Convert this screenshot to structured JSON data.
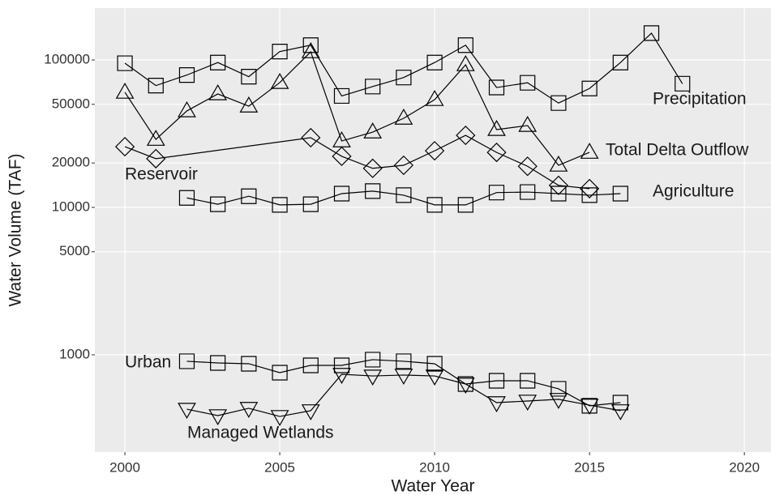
{
  "chart_data": {
    "type": "line",
    "log_y": true,
    "grid": true,
    "xlabel": "Water Year",
    "ylabel": "Water Volume (TAF)",
    "xlim": [
      1999.03,
      2020.86
    ],
    "xticks": [
      2000,
      2005,
      2010,
      2015,
      2020
    ],
    "ylim": [
      219,
      224700
    ],
    "yticks": [
      1000,
      5000,
      10000,
      20000,
      50000,
      100000
    ],
    "series": [
      {
        "name": "Precipitation",
        "marker": "square",
        "color": "#000000",
        "x": [
          2000,
          2001,
          2002,
          2003,
          2004,
          2005,
          2006,
          2007,
          2008,
          2009,
          2010,
          2011,
          2012,
          2013,
          2014,
          2015,
          2016,
          2017,
          2018
        ],
        "values": [
          95000,
          67000,
          79000,
          96000,
          77000,
          114000,
          126000,
          57000,
          66000,
          76000,
          96000,
          126000,
          65000,
          70000,
          51000,
          64000,
          96000,
          152000,
          69000
        ]
      },
      {
        "name": "Total Delta Outflow",
        "marker": "triangle-up",
        "color": "#000000",
        "x": [
          2000,
          2001,
          2002,
          2003,
          2004,
          2005,
          2006,
          2007,
          2008,
          2009,
          2010,
          2011,
          2012,
          2013,
          2014,
          2015
        ],
        "values": [
          60300,
          28900,
          45100,
          58800,
          48600,
          70200,
          113500,
          28200,
          32400,
          40200,
          53800,
          92700,
          33700,
          35900,
          19300,
          23600
        ]
      },
      {
        "name": "Reservoir",
        "marker": "diamond",
        "color": "#000000",
        "x": [
          2000,
          2001,
          2006,
          2007,
          2008,
          2009,
          2010,
          2011,
          2012,
          2013,
          2014,
          2015
        ],
        "values": [
          25800,
          21400,
          29700,
          22200,
          18400,
          19300,
          24200,
          30800,
          23600,
          19000,
          14100,
          13400
        ]
      },
      {
        "name": "Agriculture",
        "marker": "square",
        "color": "#000000",
        "x": [
          2002,
          2003,
          2004,
          2005,
          2006,
          2007,
          2008,
          2009,
          2010,
          2011,
          2012,
          2013,
          2014,
          2015,
          2016
        ],
        "values": [
          11600,
          10500,
          11900,
          10400,
          10500,
          12400,
          12900,
          12100,
          10400,
          10400,
          12600,
          12700,
          12400,
          12100,
          12400
        ]
      },
      {
        "name": "Urban",
        "marker": "square",
        "color": "#000000",
        "x": [
          2002,
          2003,
          2004,
          2005,
          2006,
          2007,
          2008,
          2009,
          2010,
          2011,
          2012,
          2013,
          2014,
          2015,
          2016
        ],
        "values": [
          904,
          881,
          870,
          757,
          848,
          848,
          927,
          904,
          870,
          634,
          667,
          667,
          588,
          451,
          474
        ]
      },
      {
        "name": "Managed Wetlands",
        "marker": "triangle-down",
        "color": "#000000",
        "x": [
          2002,
          2003,
          2004,
          2005,
          2006,
          2007,
          2008,
          2009,
          2010,
          2011,
          2012,
          2013,
          2014,
          2015,
          2016
        ],
        "values": [
          428,
          387,
          434,
          382,
          418,
          738,
          719,
          729,
          719,
          634,
          474,
          486,
          499,
          456,
          418
        ]
      }
    ]
  }
}
